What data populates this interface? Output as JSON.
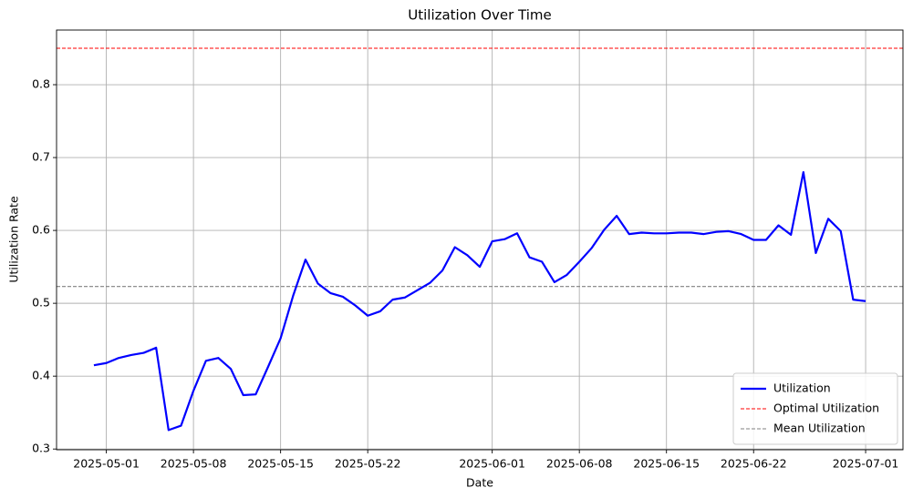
{
  "chart_data": {
    "type": "line",
    "title": "Utilization Over Time",
    "x_label": "Date",
    "y_label": "Utilization Rate",
    "x": [
      "2025-04-30",
      "2025-05-01",
      "2025-05-02",
      "2025-05-03",
      "2025-05-04",
      "2025-05-05",
      "2025-05-06",
      "2025-05-07",
      "2025-05-08",
      "2025-05-09",
      "2025-05-10",
      "2025-05-11",
      "2025-05-12",
      "2025-05-13",
      "2025-05-14",
      "2025-05-15",
      "2025-05-16",
      "2025-05-17",
      "2025-05-18",
      "2025-05-19",
      "2025-05-20",
      "2025-05-21",
      "2025-05-22",
      "2025-05-23",
      "2025-05-24",
      "2025-05-25",
      "2025-05-26",
      "2025-05-27",
      "2025-05-28",
      "2025-05-29",
      "2025-05-30",
      "2025-05-31",
      "2025-06-01",
      "2025-06-02",
      "2025-06-03",
      "2025-06-04",
      "2025-06-05",
      "2025-06-06",
      "2025-06-07",
      "2025-06-08",
      "2025-06-09",
      "2025-06-10",
      "2025-06-11",
      "2025-06-12",
      "2025-06-13",
      "2025-06-14",
      "2025-06-15",
      "2025-06-16",
      "2025-06-17",
      "2025-06-18",
      "2025-06-19",
      "2025-06-20",
      "2025-06-21",
      "2025-06-22",
      "2025-06-23",
      "2025-06-24",
      "2025-06-25",
      "2025-06-26",
      "2025-06-27",
      "2025-06-28",
      "2025-06-29",
      "2025-06-30",
      "2025-07-01"
    ],
    "series": [
      {
        "name": "Utilization",
        "color": "#0000ff",
        "values": [
          0.415,
          0.418,
          0.425,
          0.429,
          0.432,
          0.439,
          0.326,
          0.332,
          0.38,
          0.421,
          0.425,
          0.41,
          0.374,
          0.375,
          0.413,
          0.452,
          0.51,
          0.56,
          0.527,
          0.514,
          0.509,
          0.497,
          0.483,
          0.489,
          0.505,
          0.508,
          0.518,
          0.528,
          0.545,
          0.577,
          0.566,
          0.55,
          0.585,
          0.588,
          0.596,
          0.563,
          0.557,
          0.529,
          0.539,
          0.557,
          0.576,
          0.601,
          0.62,
          0.595,
          0.597,
          0.596,
          0.596,
          0.597,
          0.597,
          0.595,
          0.598,
          0.599,
          0.595,
          0.587,
          0.587,
          0.607,
          0.594,
          0.68,
          0.569,
          0.616,
          0.599,
          0.505,
          0.503
        ]
      }
    ],
    "reference_lines": [
      {
        "name": "Optimal Utilization",
        "color": "#ff0000",
        "value": 0.85
      },
      {
        "name": "Mean Utilization",
        "color": "#808080",
        "value": 0.523
      }
    ],
    "xlim": [
      "2025-04-27",
      "2025-07-04"
    ],
    "ylim": [
      0.299,
      0.875
    ],
    "xticks": [
      "2025-05-01",
      "2025-05-08",
      "2025-05-15",
      "2025-05-22",
      "2025-06-01",
      "2025-06-08",
      "2025-06-15",
      "2025-06-22",
      "2025-07-01"
    ],
    "yticks": [
      0.3,
      0.4,
      0.5,
      0.6,
      0.7,
      0.8
    ],
    "grid": true,
    "legend": "lower right"
  }
}
